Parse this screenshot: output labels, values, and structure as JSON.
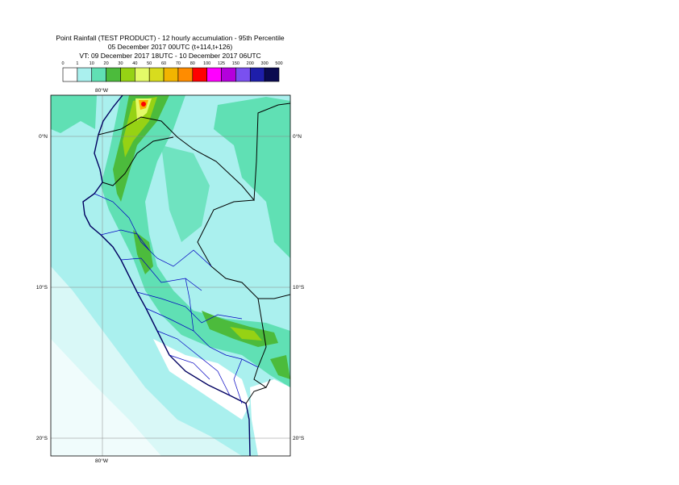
{
  "header": {
    "title": "Point Rainfall (TEST PRODUCT) - 12 hourly accumulation - 95th Percentile",
    "base_time": "05 December 2017 00UTC (t+114,t+126)",
    "valid_time": "VT: 09 December 2017 18UTC - 10 December 2017 06UTC"
  },
  "legend": {
    "levels": [
      0,
      1,
      10,
      20,
      30,
      40,
      50,
      60,
      70,
      80,
      100,
      125,
      150,
      200,
      300,
      500
    ],
    "colors": [
      "#ffffff",
      "#aaf0ee",
      "#60e0b4",
      "#4cbb3c",
      "#96d214",
      "#e4fa68",
      "#d8dc1e",
      "#f2b400",
      "#ff8c00",
      "#ff0000",
      "#ff00ff",
      "#b400dc",
      "#7a50f0",
      "#1e1eaa",
      "#0a0a50"
    ]
  },
  "map": {
    "lon_label": "80°W",
    "lat_labels": [
      "0°N",
      "10°S",
      "20°S"
    ]
  }
}
